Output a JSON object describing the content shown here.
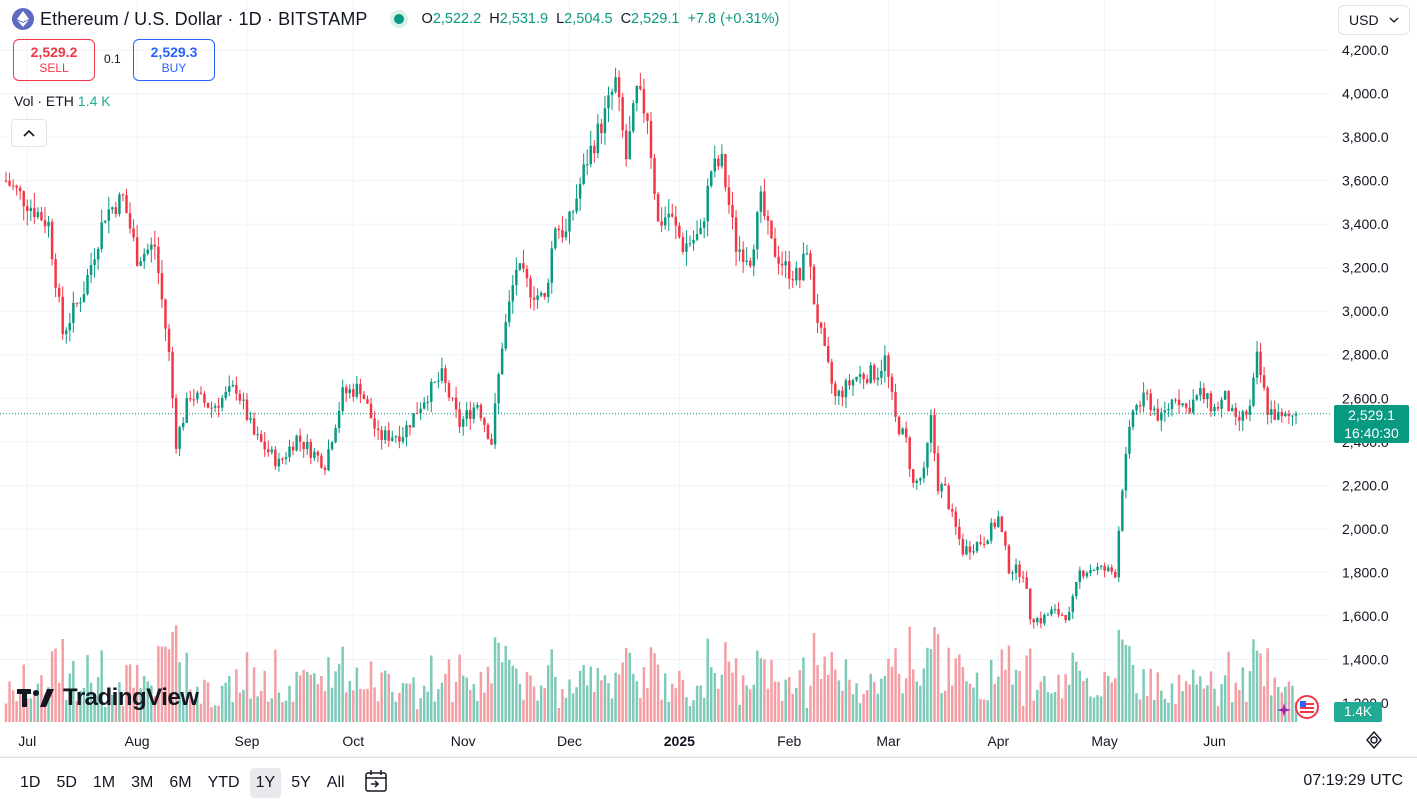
{
  "header": {
    "title": "Ethereum / U.S. Dollar · 1D · BITSTAMP",
    "ohlc": [
      {
        "key": "O",
        "value": "2,522.2"
      },
      {
        "key": "H",
        "value": "2,531.9"
      },
      {
        "key": "L",
        "value": "2,504.5"
      },
      {
        "key": "C",
        "value": "2,529.1"
      }
    ],
    "change": "+7.8 (+0.31%)",
    "currency": "USD"
  },
  "trade": {
    "sell_price": "2,529.2",
    "sell_label": "SELL",
    "spread": "0.1",
    "buy_price": "2,529.3",
    "buy_label": "BUY"
  },
  "volume_legend": {
    "label": "Vol · ETH",
    "value": "1.4 K"
  },
  "logo": "TradingView",
  "price_tag": {
    "price": "2,529.1",
    "countdown": "16:40:30"
  },
  "volume_tag": "1.4K",
  "icons": {
    "symbol": "ethereum-icon",
    "collapse": "chevron-up-icon",
    "goto": "calendar-arrow-icon",
    "settings": "gear-icon",
    "flag": "us-flag-icon"
  },
  "colors": {
    "up": "#089981",
    "down": "#f23645",
    "vol_up": "#7dcab9",
    "vol_down": "#f49da3",
    "accent": "#2962ff"
  },
  "bottom_bar": {
    "ranges": [
      "1D",
      "5D",
      "1M",
      "3M",
      "6M",
      "YTD",
      "1Y",
      "5Y",
      "All"
    ],
    "active_range": "1Y",
    "clock": "07:19:29 UTC"
  },
  "chart_data": {
    "type": "candlestick",
    "title": "Ethereum / U.S. Dollar · 1D · BITSTAMP",
    "y_ticks": [
      "4,200.0",
      "4,000.0",
      "3,800.0",
      "3,600.0",
      "3,400.0",
      "3,200.0",
      "3,000.0",
      "2,800.0",
      "2,600.0",
      "2,400.0",
      "2,200.0",
      "2,000.0",
      "1,800.0",
      "1,600.0",
      "1,400.0",
      "1,200.0"
    ],
    "y_tick_values": [
      4200,
      4000,
      3800,
      3600,
      3400,
      3200,
      3000,
      2800,
      2600,
      2400,
      2200,
      2000,
      1800,
      1600,
      1400,
      1200
    ],
    "x_ticks": [
      "Jul",
      "Aug",
      "Sep",
      "Oct",
      "Nov",
      "Dec",
      "2025",
      "Feb",
      "Mar",
      "Apr",
      "May",
      "Jun"
    ],
    "x_tick_days": [
      6,
      37,
      68,
      98,
      129,
      159,
      190,
      221,
      249,
      280,
      310,
      341
    ],
    "last_price": 2529.1,
    "close_anchors": [
      {
        "day": 0,
        "close": 3600
      },
      {
        "day": 12,
        "close": 3400
      },
      {
        "day": 16,
        "close": 2900
      },
      {
        "day": 22,
        "close": 3100
      },
      {
        "day": 28,
        "close": 3450
      },
      {
        "day": 33,
        "close": 3520
      },
      {
        "day": 37,
        "close": 3250
      },
      {
        "day": 42,
        "close": 3300
      },
      {
        "day": 46,
        "close": 2800
      },
      {
        "day": 48,
        "close": 2400
      },
      {
        "day": 52,
        "close": 2620
      },
      {
        "day": 58,
        "close": 2560
      },
      {
        "day": 65,
        "close": 2650
      },
      {
        "day": 70,
        "close": 2430
      },
      {
        "day": 77,
        "close": 2300
      },
      {
        "day": 82,
        "close": 2420
      },
      {
        "day": 90,
        "close": 2300
      },
      {
        "day": 95,
        "close": 2620
      },
      {
        "day": 100,
        "close": 2650
      },
      {
        "day": 105,
        "close": 2420
      },
      {
        "day": 112,
        "close": 2440
      },
      {
        "day": 118,
        "close": 2600
      },
      {
        "day": 123,
        "close": 2700
      },
      {
        "day": 128,
        "close": 2480
      },
      {
        "day": 133,
        "close": 2580
      },
      {
        "day": 137,
        "close": 2400
      },
      {
        "day": 140,
        "close": 2850
      },
      {
        "day": 144,
        "close": 3200
      },
      {
        "day": 148,
        "close": 3100
      },
      {
        "day": 152,
        "close": 3050
      },
      {
        "day": 155,
        "close": 3400
      },
      {
        "day": 158,
        "close": 3350
      },
      {
        "day": 164,
        "close": 3700
      },
      {
        "day": 169,
        "close": 3900
      },
      {
        "day": 172,
        "close": 4050
      },
      {
        "day": 175,
        "close": 3700
      },
      {
        "day": 178,
        "close": 4000
      },
      {
        "day": 181,
        "close": 3900
      },
      {
        "day": 184,
        "close": 3400
      },
      {
        "day": 187,
        "close": 3450
      },
      {
        "day": 191,
        "close": 3300
      },
      {
        "day": 196,
        "close": 3350
      },
      {
        "day": 199,
        "close": 3650
      },
      {
        "day": 202,
        "close": 3680
      },
      {
        "day": 206,
        "close": 3300
      },
      {
        "day": 210,
        "close": 3250
      },
      {
        "day": 213,
        "close": 3500
      },
      {
        "day": 216,
        "close": 3300
      },
      {
        "day": 220,
        "close": 3200
      },
      {
        "day": 224,
        "close": 3150
      },
      {
        "day": 226,
        "close": 3300
      },
      {
        "day": 228,
        "close": 3050
      },
      {
        "day": 231,
        "close": 2800
      },
      {
        "day": 234,
        "close": 2600
      },
      {
        "day": 240,
        "close": 2700
      },
      {
        "day": 246,
        "close": 2720
      },
      {
        "day": 248,
        "close": 2780
      },
      {
        "day": 251,
        "close": 2500
      },
      {
        "day": 254,
        "close": 2400
      },
      {
        "day": 256,
        "close": 2200
      },
      {
        "day": 259,
        "close": 2250
      },
      {
        "day": 261,
        "close": 2500
      },
      {
        "day": 263,
        "close": 2200
      },
      {
        "day": 265,
        "close": 2180
      },
      {
        "day": 267,
        "close": 2050
      },
      {
        "day": 270,
        "close": 1900
      },
      {
        "day": 276,
        "close": 1950
      },
      {
        "day": 280,
        "close": 2050
      },
      {
        "day": 283,
        "close": 1820
      },
      {
        "day": 287,
        "close": 1800
      },
      {
        "day": 289,
        "close": 1600
      },
      {
        "day": 292,
        "close": 1580
      },
      {
        "day": 295,
        "close": 1620
      },
      {
        "day": 300,
        "close": 1600
      },
      {
        "day": 303,
        "close": 1800
      },
      {
        "day": 307,
        "close": 1820
      },
      {
        "day": 313,
        "close": 1800
      },
      {
        "day": 315,
        "close": 2200
      },
      {
        "day": 318,
        "close": 2550
      },
      {
        "day": 322,
        "close": 2600
      },
      {
        "day": 326,
        "close": 2500
      },
      {
        "day": 330,
        "close": 2620
      },
      {
        "day": 333,
        "close": 2550
      },
      {
        "day": 337,
        "close": 2620
      },
      {
        "day": 341,
        "close": 2550
      },
      {
        "day": 344,
        "close": 2600
      },
      {
        "day": 347,
        "close": 2480
      },
      {
        "day": 351,
        "close": 2550
      },
      {
        "day": 353,
        "close": 2780
      },
      {
        "day": 356,
        "close": 2550
      },
      {
        "day": 360,
        "close": 2500
      },
      {
        "day": 364,
        "close": 2529
      }
    ]
  }
}
